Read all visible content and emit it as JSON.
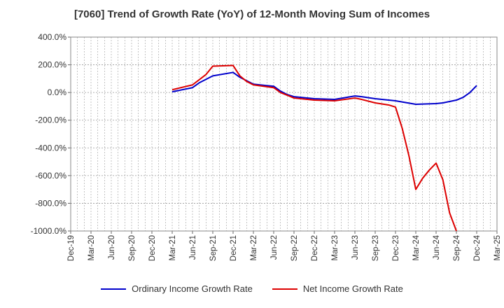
{
  "chart_data": {
    "type": "line",
    "title": "[7060]  Trend of Growth Rate (YoY) of 12-Month Moving Sum of Incomes",
    "xlabel": "",
    "ylabel": "",
    "ylim": [
      -1000,
      400
    ],
    "y_ticks": [
      "400.0%",
      "200.0%",
      "0.0%",
      "-200.0%",
      "-400.0%",
      "-600.0%",
      "-800.0%",
      "-1000.0%"
    ],
    "y_tick_values": [
      400,
      200,
      0,
      -200,
      -400,
      -600,
      -800,
      -1000
    ],
    "x_ticks": [
      "Dec-19",
      "Mar-20",
      "Jun-20",
      "Sep-20",
      "Dec-20",
      "Mar-21",
      "Jun-21",
      "Sep-21",
      "Dec-21",
      "Mar-22",
      "Jun-22",
      "Sep-22",
      "Dec-22",
      "Mar-23",
      "Jun-23",
      "Sep-23",
      "Dec-23",
      "Mar-24",
      "Jun-24",
      "Sep-24",
      "Dec-24",
      "Mar-25"
    ],
    "grid": true,
    "legend_position": "bottom",
    "series": [
      {
        "name": "Ordinary Income Growth Rate",
        "color": "#0000cc",
        "points": [
          [
            "Mar-21",
            5
          ],
          [
            "Apr-21",
            15
          ],
          [
            "Jun-21",
            35
          ],
          [
            "Jul-21",
            70
          ],
          [
            "Sep-21",
            120
          ],
          [
            "Dec-21",
            145
          ],
          [
            "Jan-22",
            110
          ],
          [
            "Mar-22",
            60
          ],
          [
            "Jun-22",
            45
          ],
          [
            "Jul-22",
            10
          ],
          [
            "Aug-22",
            -15
          ],
          [
            "Sep-22",
            -30
          ],
          [
            "Dec-22",
            -45
          ],
          [
            "Mar-23",
            -50
          ],
          [
            "Jun-23",
            -25
          ],
          [
            "Jul-23",
            -30
          ],
          [
            "Sep-23",
            -45
          ],
          [
            "Dec-23",
            -60
          ],
          [
            "Mar-24",
            -85
          ],
          [
            "Jun-24",
            -80
          ],
          [
            "Jul-24",
            -75
          ],
          [
            "Sep-24",
            -55
          ],
          [
            "Oct-24",
            -35
          ],
          [
            "Nov-24",
            0
          ],
          [
            "Dec-24",
            50
          ]
        ]
      },
      {
        "name": "Net Income Growth Rate",
        "color": "#dd0000",
        "points": [
          [
            "Mar-21",
            20
          ],
          [
            "Jun-21",
            55
          ],
          [
            "Aug-21",
            130
          ],
          [
            "Sep-21",
            190
          ],
          [
            "Dec-21",
            195
          ],
          [
            "Jan-22",
            120
          ],
          [
            "Feb-22",
            80
          ],
          [
            "Mar-22",
            55
          ],
          [
            "Jun-22",
            35
          ],
          [
            "Jul-22",
            0
          ],
          [
            "Aug-22",
            -20
          ],
          [
            "Sep-22",
            -40
          ],
          [
            "Dec-22",
            -55
          ],
          [
            "Mar-23",
            -60
          ],
          [
            "Jun-23",
            -40
          ],
          [
            "Jul-23",
            -50
          ],
          [
            "Sep-23",
            -75
          ],
          [
            "Nov-23",
            -90
          ],
          [
            "Dec-23",
            -105
          ],
          [
            "Jan-24",
            -260
          ],
          [
            "Feb-24",
            -460
          ],
          [
            "Mar-24",
            -700
          ],
          [
            "Apr-24",
            -620
          ],
          [
            "May-24",
            -560
          ],
          [
            "Jun-24",
            -510
          ],
          [
            "Jul-24",
            -630
          ],
          [
            "Aug-24",
            -870
          ],
          [
            "Sep-24",
            -1000
          ]
        ]
      }
    ]
  }
}
